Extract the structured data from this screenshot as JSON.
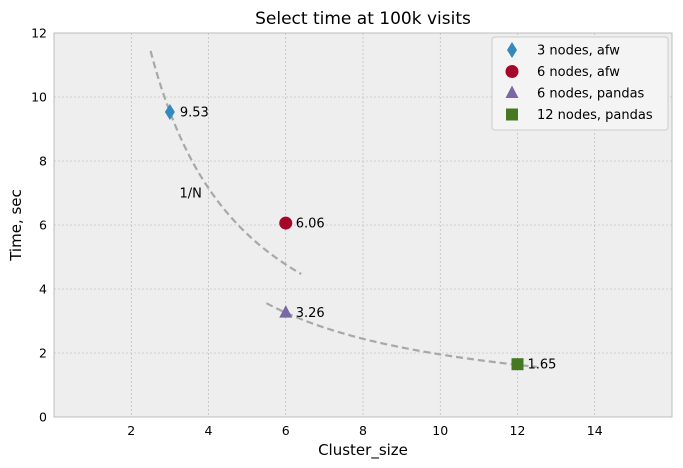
{
  "chart_data": {
    "type": "scatter",
    "title": "Select time at 100k visits",
    "xlabel": "Cluster_size",
    "ylabel": "Time, sec",
    "xlim": [
      0,
      16
    ],
    "ylim": [
      0,
      12
    ],
    "xticks": [
      2,
      4,
      6,
      8,
      10,
      12,
      14
    ],
    "yticks": [
      0,
      2,
      4,
      6,
      8,
      10,
      12
    ],
    "xtick_labels": [
      "2",
      "4",
      "6",
      "8",
      "10",
      "12",
      "14"
    ],
    "ytick_labels": [
      "0",
      "2",
      "4",
      "6",
      "8",
      "10",
      "12"
    ],
    "grid": true,
    "legend_position": "top-right",
    "series": [
      {
        "name": "3 nodes, afw",
        "marker": "diamond",
        "color": "#348ABD",
        "x": [
          3
        ],
        "y": [
          9.53
        ],
        "label": "9.53"
      },
      {
        "name": "6 nodes, afw",
        "marker": "circle",
        "color": "#A60628",
        "x": [
          6
        ],
        "y": [
          6.06
        ],
        "label": "6.06"
      },
      {
        "name": "6 nodes, pandas",
        "marker": "triangle",
        "color": "#7A68A6",
        "x": [
          6
        ],
        "y": [
          3.26
        ],
        "label": "3.26"
      },
      {
        "name": "12 nodes, pandas",
        "marker": "square",
        "color": "#467821",
        "x": [
          12
        ],
        "y": [
          1.65
        ],
        "label": "1.65"
      }
    ],
    "reference_curves": [
      {
        "formula": "28.6/x",
        "x_range": [
          2.5,
          6.4
        ],
        "color": "#A8A8A8",
        "style": "dashed"
      },
      {
        "formula": "19.56/x",
        "x_range": [
          5.5,
          12.5
        ],
        "color": "#A8A8A8",
        "style": "dashed"
      }
    ],
    "annotations": [
      {
        "text": "1/N",
        "x": 3.25,
        "y": 7.0
      }
    ]
  }
}
